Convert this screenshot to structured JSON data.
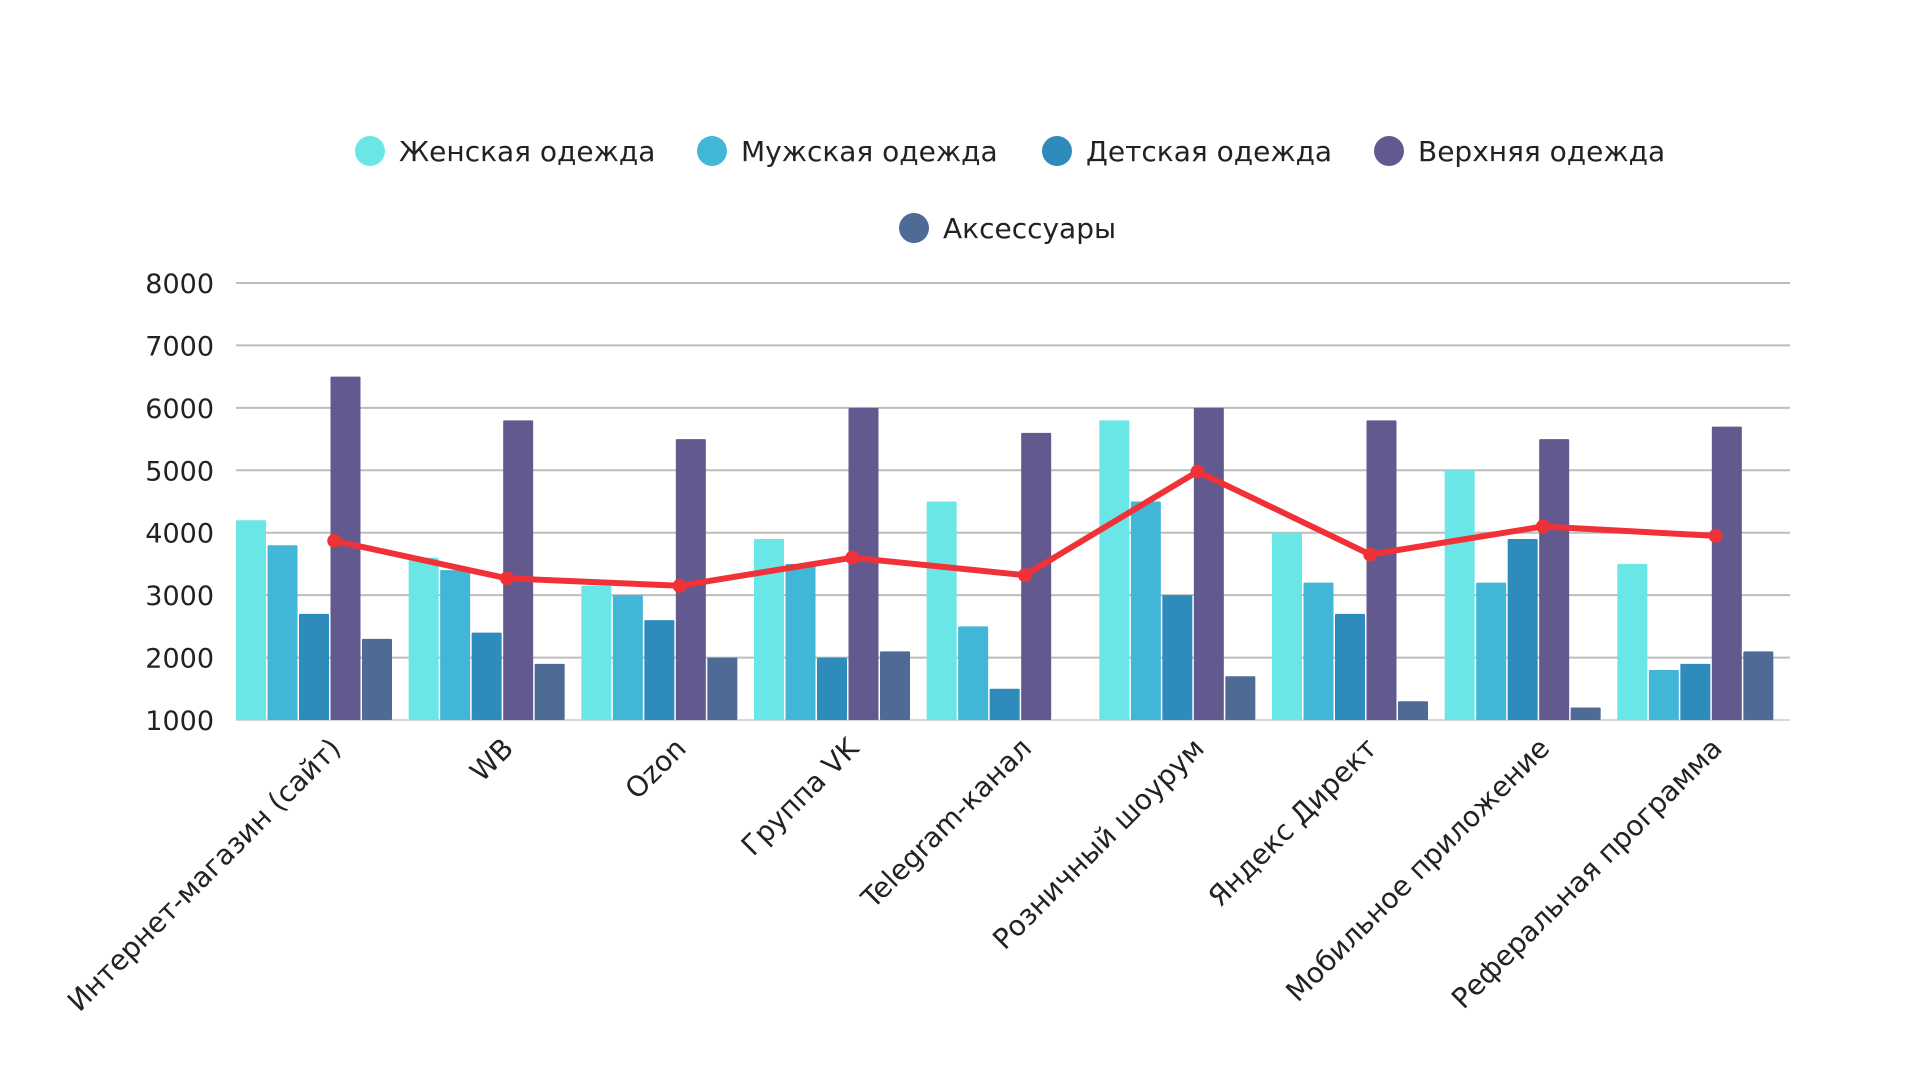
{
  "chart_data": {
    "type": "bar",
    "categories": [
      "Интернет-магазин (сайт)",
      "WB",
      "Ozon",
      "Группа VK",
      "Telegram-канал",
      "Розничный шоурум",
      "Яндекс Директ",
      "Мобильное приложение",
      "Реферальная программа"
    ],
    "series": [
      {
        "name": "Женская одежда",
        "color": "#6ae6e6",
        "values": [
          4200,
          3600,
          3150,
          3900,
          4500,
          5800,
          4000,
          5000,
          3500
        ]
      },
      {
        "name": "Мужская одежда",
        "color": "#41b6d6",
        "values": [
          3800,
          3400,
          3000,
          3500,
          2500,
          4500,
          3200,
          3200,
          1800
        ]
      },
      {
        "name": "Детская одежда",
        "color": "#2e8bbb",
        "values": [
          2700,
          2400,
          2600,
          2000,
          1500,
          3000,
          2700,
          3900,
          1900
        ]
      },
      {
        "name": "Верхняя одежда",
        "color": "#625a8f",
        "values": [
          6500,
          5800,
          5500,
          6000,
          5600,
          6000,
          5800,
          5500,
          5700
        ]
      },
      {
        "name": "Аксессуары",
        "color": "#4e6b96",
        "values": [
          2300,
          1900,
          2000,
          2100,
          null,
          1700,
          1300,
          1200,
          2100
        ]
      }
    ],
    "line": {
      "type": "line",
      "color": "#f03238",
      "values": [
        3870,
        3270,
        3150,
        3600,
        3320,
        4980,
        3650,
        4100,
        3950
      ]
    },
    "ylim": [
      1000,
      8000
    ],
    "yticks": [
      "1000",
      "2000",
      "3000",
      "4000",
      "5000",
      "6000",
      "7000",
      "8000"
    ],
    "grid": true,
    "legend_position": "top",
    "xlabel": "",
    "ylabel": ""
  }
}
